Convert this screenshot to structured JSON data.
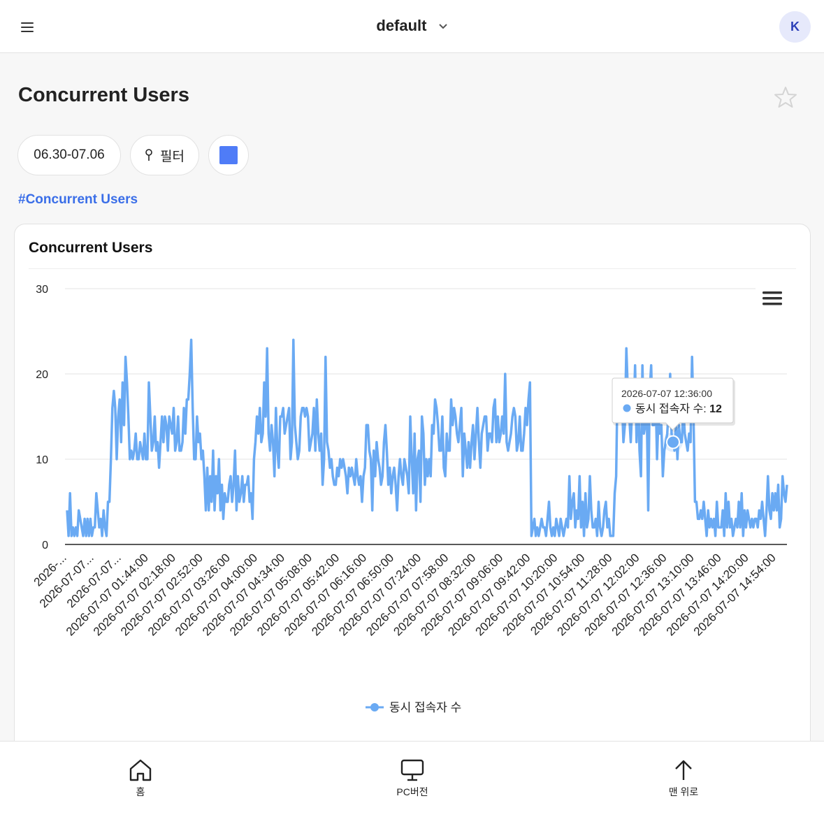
{
  "header": {
    "workspace": "default",
    "avatar_initial": "K"
  },
  "page": {
    "title": "Concurrent Users",
    "date_range": "06.30-07.06",
    "filter_label": "필터",
    "color_swatch": "#4f7cf7",
    "tag": "#Concurrent Users"
  },
  "card": {
    "title": "Concurrent Users"
  },
  "tooltip": {
    "time": "2026-07-07 12:36:00",
    "series": "동시 접속자 수",
    "value": "12"
  },
  "chart_data": {
    "type": "line",
    "title": "Concurrent Users",
    "ylim": [
      0,
      30
    ],
    "y_ticks": [
      "0",
      "10",
      "20",
      "30"
    ],
    "grid": true,
    "legend": "bottom-center",
    "series_color": "#6aaaf3",
    "x_tick_labels": [
      "2026-...",
      "2026-07-07...",
      "2026-07-07...",
      "2026-07-07 01:44:00",
      "2026-07-07 02:18:00",
      "2026-07-07 02:52:00",
      "2026-07-07 03:26:00",
      "2026-07-07 04:00:00",
      "2026-07-07 04:34:00",
      "2026-07-07 05:08:00",
      "2026-07-07 05:42:00",
      "2026-07-07 06:16:00",
      "2026-07-07 06:50:00",
      "2026-07-07 07:24:00",
      "2026-07-07 07:58:00",
      "2026-07-07 08:32:00",
      "2026-07-07 09:06:00",
      "2026-07-07 09:42:00",
      "2026-07-07 10:20:00",
      "2026-07-07 10:54:00",
      "2026-07-07 11:28:00",
      "2026-07-07 12:02:00",
      "2026-07-07 12:36:00",
      "2026-07-07 13:10:00",
      "2026-07-07 13:46:00",
      "2026-07-07 14:20:00",
      "2026-07-07 14:54:00"
    ],
    "series": [
      {
        "name": "동시 접속자 수",
        "values": [
          4,
          1,
          6,
          1,
          2,
          1,
          2,
          1,
          4,
          3,
          2,
          1,
          3,
          1,
          3,
          1,
          3,
          1,
          2,
          2,
          6,
          4,
          2,
          3,
          1,
          4,
          2,
          1,
          5,
          5,
          10,
          16,
          18,
          16,
          10,
          15,
          17,
          12,
          19,
          14,
          22,
          19,
          15,
          10,
          11,
          10,
          11,
          13,
          10,
          10,
          12,
          11,
          10,
          13,
          10,
          10,
          19,
          15,
          11,
          12,
          15,
          11,
          12,
          9,
          12,
          15,
          12,
          15,
          14,
          11,
          15,
          14,
          13,
          16,
          11,
          12,
          15,
          11,
          11,
          12,
          16,
          13,
          17,
          17,
          20,
          24,
          16,
          10,
          10,
          15,
          12,
          13,
          10,
          11,
          8,
          4,
          9,
          4,
          8,
          5,
          11,
          4,
          8,
          6,
          10,
          4,
          7,
          3,
          6,
          5,
          5,
          7,
          8,
          5,
          7,
          11,
          4,
          8,
          5,
          6,
          8,
          5,
          7,
          7,
          8,
          5,
          6,
          3,
          10,
          12,
          15,
          13,
          16,
          12,
          13,
          19,
          15,
          23,
          13,
          11,
          14,
          12,
          8,
          16,
          11,
          9,
          15,
          15,
          16,
          13,
          14,
          15,
          16,
          10,
          12,
          24,
          14,
          12,
          10,
          11,
          15,
          16,
          16,
          15,
          16,
          15,
          11,
          12,
          13,
          16,
          11,
          17,
          13,
          11,
          13,
          7,
          10,
          22,
          12,
          11,
          9,
          10,
          8,
          7,
          7,
          9,
          8,
          10,
          9,
          10,
          9,
          8,
          6,
          9,
          8,
          9,
          8,
          7,
          10,
          8,
          7,
          8,
          5,
          8,
          9,
          14,
          14,
          11,
          10,
          4,
          11,
          8,
          12,
          10,
          9,
          7,
          8,
          12,
          14,
          11,
          7,
          9,
          6,
          8,
          9,
          7,
          4,
          8,
          10,
          8,
          7,
          10,
          9,
          8,
          6,
          15,
          10,
          6,
          13,
          4,
          10,
          11,
          5,
          15,
          13,
          7,
          10,
          8,
          10,
          8,
          14,
          13,
          17,
          16,
          14,
          11,
          11,
          15,
          9,
          8,
          13,
          11,
          11,
          17,
          14,
          16,
          15,
          13,
          12,
          14,
          16,
          8,
          13,
          11,
          9,
          12,
          9,
          12,
          14,
          10,
          13,
          16,
          12,
          9,
          13,
          14,
          15,
          15,
          11,
          13,
          13,
          12,
          16,
          17,
          12,
          15,
          12,
          13,
          15,
          13,
          20,
          12,
          11,
          12,
          13,
          15,
          16,
          15,
          11,
          12,
          15,
          11,
          11,
          13,
          16,
          14,
          17,
          19,
          1,
          2,
          3,
          1,
          2,
          1,
          2,
          3,
          2,
          2,
          1,
          3,
          5,
          2,
          1,
          2,
          1,
          3,
          2,
          1,
          3,
          2,
          1,
          2,
          3,
          2,
          8,
          3,
          5,
          6,
          2,
          4,
          3,
          8,
          2,
          5,
          1,
          6,
          2,
          3,
          8,
          4,
          2,
          2,
          3,
          1,
          5,
          2,
          1,
          2,
          4,
          5,
          2,
          3,
          1,
          1,
          1,
          6,
          8,
          19,
          15,
          18,
          17,
          12,
          14,
          23,
          18,
          15,
          12,
          16,
          15,
          21,
          12,
          19,
          11,
          8,
          21,
          13,
          14,
          16,
          4,
          18,
          21,
          14,
          14,
          18,
          10,
          15,
          13,
          14,
          8,
          11,
          12,
          13,
          16,
          20,
          13,
          12,
          11,
          14,
          10,
          14,
          12,
          12,
          16,
          13,
          12,
          11,
          13,
          12,
          22,
          15,
          5,
          5,
          3,
          3,
          4,
          3,
          5,
          3,
          1,
          4,
          2,
          3,
          2,
          3,
          1,
          5,
          2,
          2,
          2,
          4,
          1,
          6,
          2,
          5,
          2,
          3,
          1,
          2,
          3,
          2,
          5,
          2,
          6,
          1,
          4,
          2,
          4,
          3,
          2,
          3,
          2,
          3,
          3,
          2,
          4,
          3,
          5,
          3,
          1,
          4,
          8,
          4,
          3,
          6,
          4,
          6,
          4,
          7,
          2,
          3,
          8,
          6,
          5,
          7
        ]
      }
    ],
    "highlight_point": {
      "x": "2026-07-07 12:36:00",
      "y": 12
    }
  },
  "nav": {
    "home": "홈",
    "pc": "PC버전",
    "top": "맨 위로"
  }
}
